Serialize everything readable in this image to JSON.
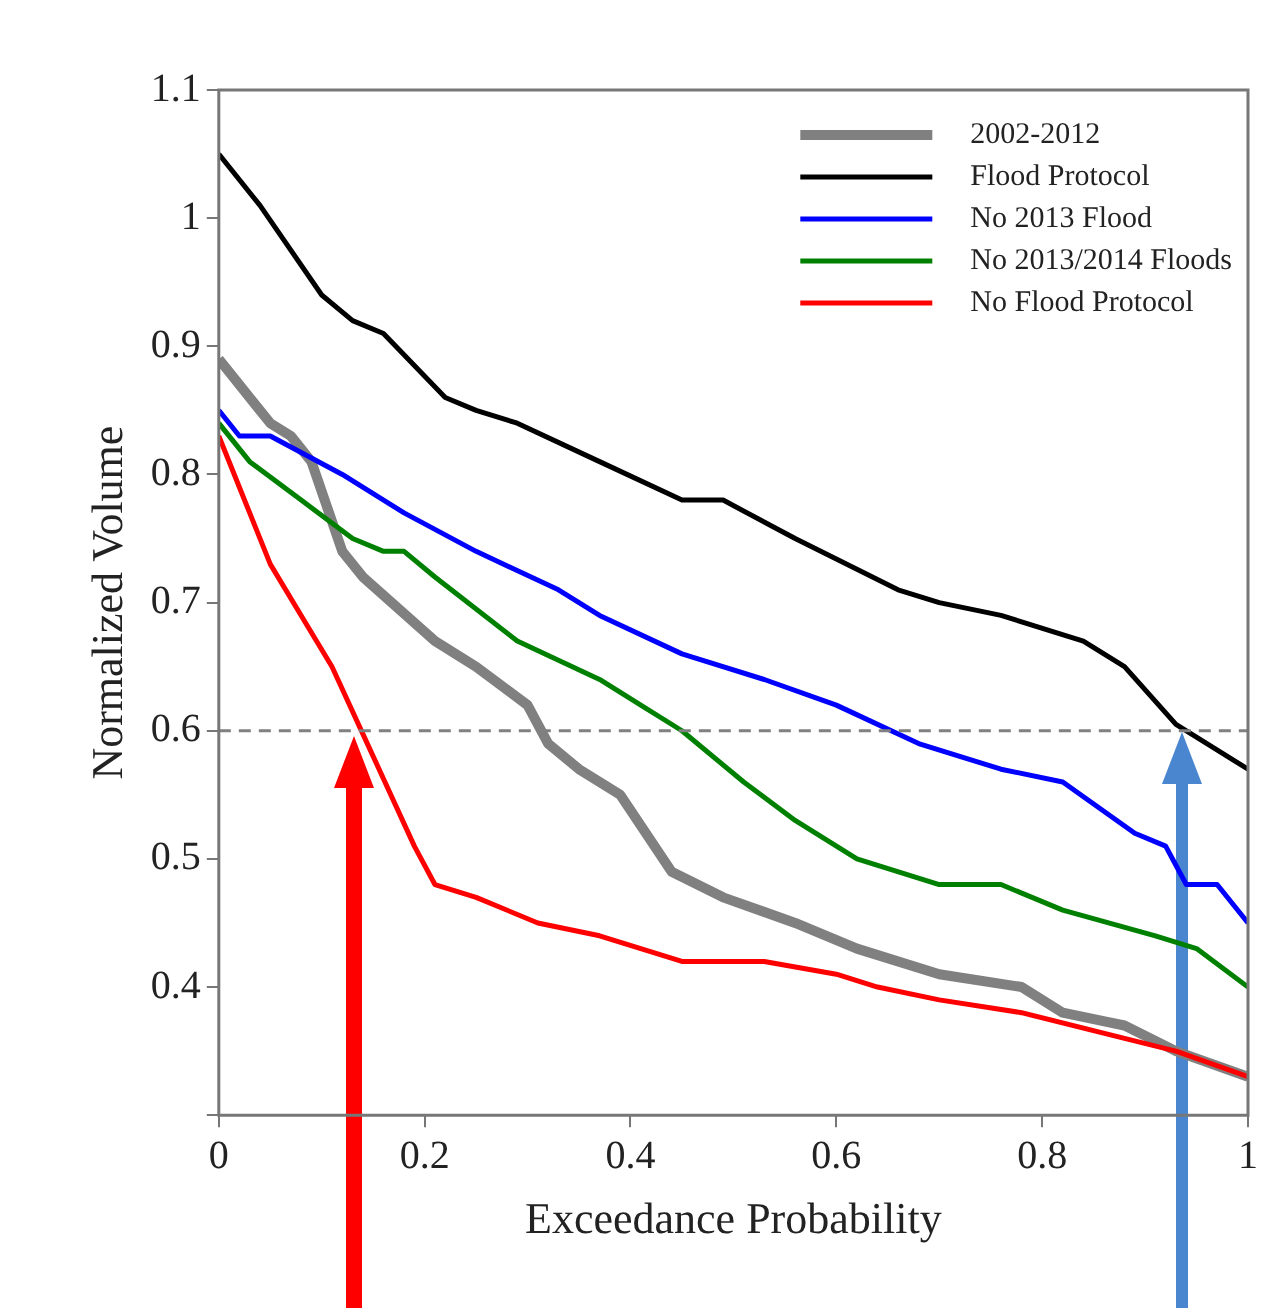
{
  "chart_data": {
    "type": "line",
    "xlabel": "Exceedance Probability",
    "ylabel": "Normalized Volume",
    "xlim": [
      0,
      1
    ],
    "xticks": [
      0,
      0.2,
      0.4,
      0.6,
      0.8,
      1
    ],
    "ylim": [
      0.3,
      1.1
    ],
    "yticks": [
      {
        "value": 0.3,
        "label": null
      },
      0.4,
      0.5,
      0.6,
      0.7,
      0.8,
      0.9,
      1,
      1.1
    ],
    "grid": false,
    "legend": "top right",
    "marker": "none",
    "line_style": "solid",
    "ref_lines": [
      {
        "axis": "y",
        "value": 0.6,
        "color": "#808080",
        "line_style": "dashed"
      }
    ],
    "series": [
      {
        "name": "2002-2012",
        "color": "#808080",
        "x": [
          0,
          0.01,
          0.05,
          0.07,
          0.09,
          0.12,
          0.14,
          0.21,
          0.25,
          0.3,
          0.32,
          0.35,
          0.39,
          0.44,
          0.49,
          0.56,
          0.62,
          0.7,
          0.78,
          0.82,
          0.88,
          0.93,
          1
        ],
        "values": [
          0.89,
          0.88,
          0.84,
          0.83,
          0.81,
          0.74,
          0.72,
          0.67,
          0.65,
          0.62,
          0.59,
          0.57,
          0.55,
          0.49,
          0.47,
          0.45,
          0.43,
          0.41,
          0.4,
          0.38,
          0.37,
          0.35,
          0.33
        ]
      },
      {
        "name": "Flood Protocol",
        "color": "#000000",
        "x": [
          0,
          0.04,
          0.1,
          0.13,
          0.16,
          0.22,
          0.25,
          0.29,
          0.37,
          0.45,
          0.49,
          0.56,
          0.66,
          0.7,
          0.76,
          0.84,
          0.88,
          0.93,
          1
        ],
        "values": [
          1.05,
          1.01,
          0.94,
          0.92,
          0.91,
          0.86,
          0.85,
          0.84,
          0.81,
          0.78,
          0.78,
          0.75,
          0.71,
          0.7,
          0.69,
          0.67,
          0.65,
          0.605,
          0.57
        ]
      },
      {
        "name": "No 2013 Flood",
        "color": "#0000ff",
        "x": [
          0,
          0.02,
          0.05,
          0.12,
          0.18,
          0.25,
          0.33,
          0.37,
          0.45,
          0.53,
          0.6,
          0.68,
          0.76,
          0.82,
          0.89,
          0.92,
          0.94,
          0.97,
          1
        ],
        "values": [
          0.85,
          0.83,
          0.83,
          0.8,
          0.77,
          0.74,
          0.71,
          0.69,
          0.66,
          0.64,
          0.62,
          0.59,
          0.57,
          0.56,
          0.52,
          0.51,
          0.48,
          0.48,
          0.45
        ]
      },
      {
        "name": "No 2013/2014 Floods",
        "color": "#008000",
        "x": [
          0,
          0.03,
          0.08,
          0.13,
          0.16,
          0.18,
          0.21,
          0.29,
          0.37,
          0.41,
          0.45,
          0.51,
          0.56,
          0.62,
          0.7,
          0.76,
          0.82,
          0.91,
          0.95,
          1
        ],
        "values": [
          0.84,
          0.81,
          0.78,
          0.75,
          0.74,
          0.74,
          0.72,
          0.67,
          0.64,
          0.62,
          0.6,
          0.56,
          0.53,
          0.5,
          0.48,
          0.48,
          0.46,
          0.44,
          0.43,
          0.4
        ]
      },
      {
        "name": "No Flood Protocol",
        "color": "#ff0000",
        "x": [
          0,
          0.02,
          0.05,
          0.08,
          0.11,
          0.15,
          0.19,
          0.21,
          0.25,
          0.31,
          0.37,
          0.45,
          0.53,
          0.6,
          0.64,
          0.7,
          0.78,
          0.88,
          0.93,
          1
        ],
        "values": [
          0.83,
          0.79,
          0.73,
          0.69,
          0.65,
          0.58,
          0.51,
          0.48,
          0.47,
          0.45,
          0.44,
          0.42,
          0.42,
          0.41,
          0.4,
          0.39,
          0.38,
          0.36,
          0.35,
          0.33
        ]
      }
    ]
  }
}
